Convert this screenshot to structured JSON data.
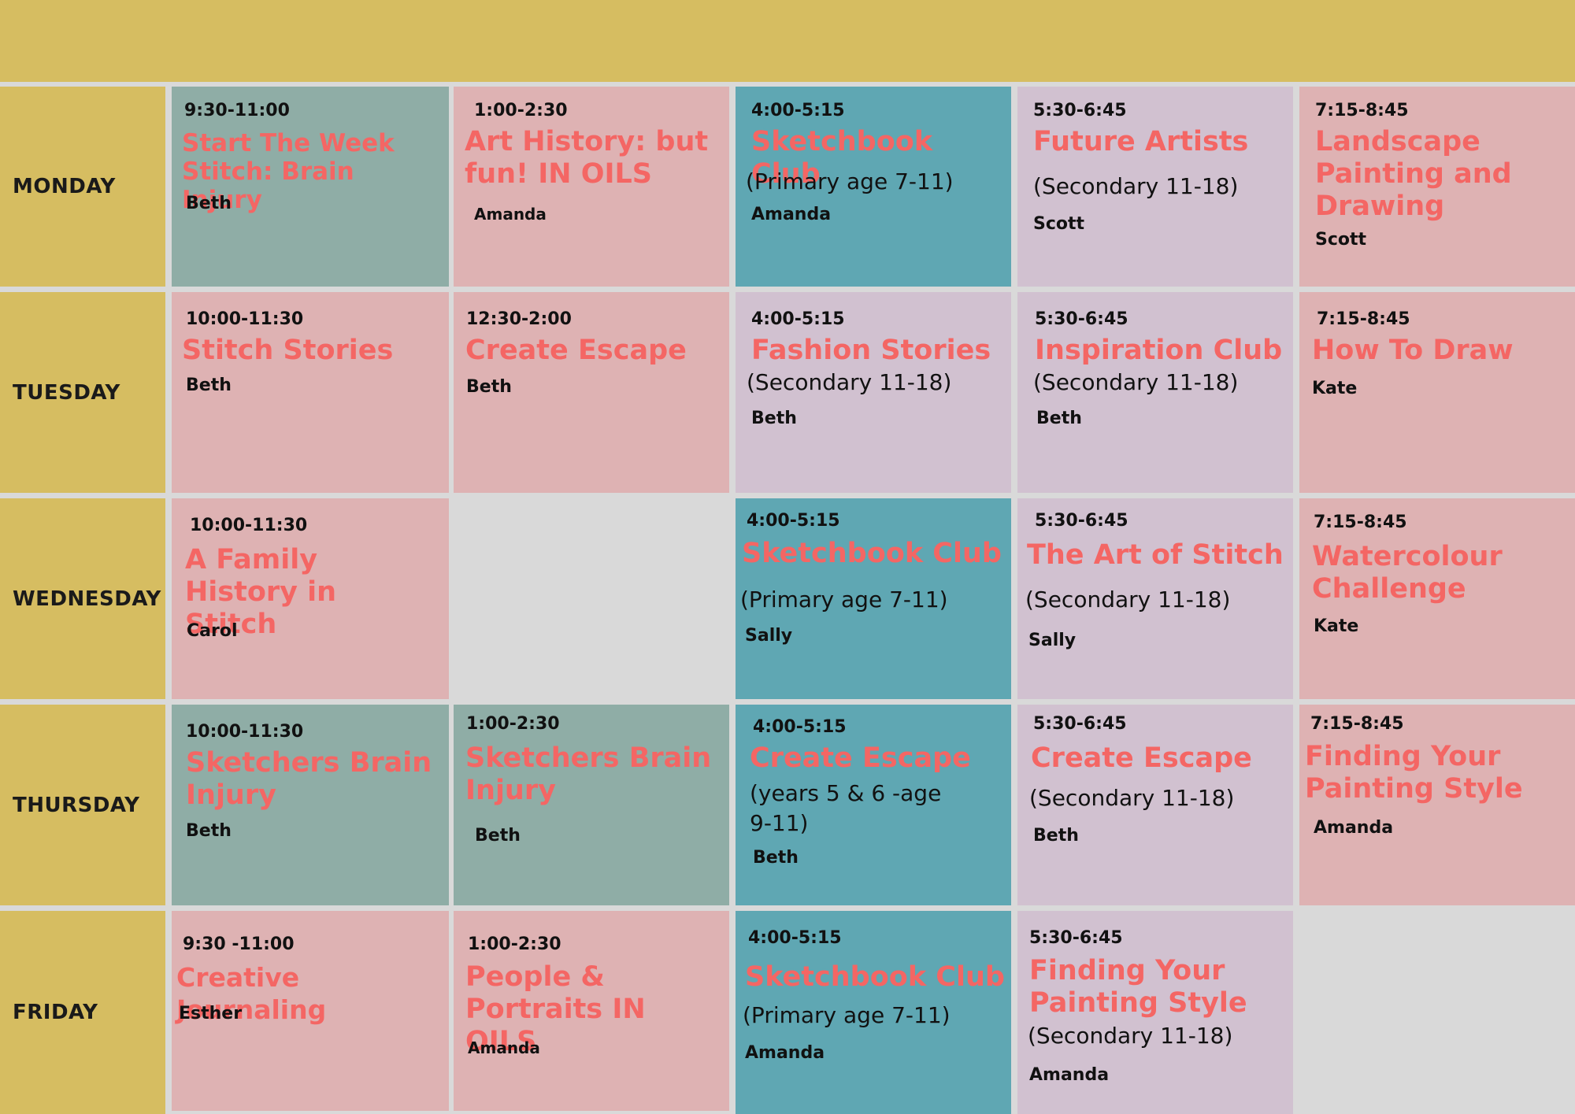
{
  "days": [
    "MONDAY",
    "TUESDAY",
    "WEDNESDAY",
    "THURSDAY",
    "FRIDAY"
  ],
  "sessions": {
    "mon1": {
      "time": "9:30-11:00",
      "title": "Start The Week Stitch: Brain Injury",
      "tutor": "Beth"
    },
    "mon2": {
      "time": "1:00-2:30",
      "title": "Art History: but fun! IN OILS",
      "tutor": "Amanda"
    },
    "mon3": {
      "time": "4:00-5:15",
      "title": "Sketchbook Club",
      "sub": "(Primary age 7-11)",
      "tutor": "Amanda"
    },
    "mon4": {
      "time": "5:30-6:45",
      "title": "Future Artists",
      "sub": "(Secondary 11-18)",
      "tutor": "Scott"
    },
    "mon5": {
      "time": "7:15-8:45",
      "title": "Landscape Painting and Drawing",
      "tutor": "Scott"
    },
    "tue1": {
      "time": "10:00-11:30",
      "title": "Stitch Stories",
      "tutor": "Beth"
    },
    "tue2": {
      "time": "12:30-2:00",
      "title": "Create Escape",
      "tutor": "Beth"
    },
    "tue3": {
      "time": "4:00-5:15",
      "title": "Fashion Stories",
      "sub": "(Secondary 11-18)",
      "tutor": "Beth"
    },
    "tue4": {
      "time": "5:30-6:45",
      "title": "Inspiration Club",
      "sub": "(Secondary 11-18)",
      "tutor": "Beth"
    },
    "tue5": {
      "time": "7:15-8:45",
      "title": "How To Draw",
      "tutor": "Kate"
    },
    "wed1": {
      "time": "10:00-11:30",
      "title": "A Family History in Stitch",
      "tutor": "Carol"
    },
    "wed3": {
      "time": "4:00-5:15",
      "title": "Sketchbook Club",
      "sub": "(Primary age 7-11)",
      "tutor": "Sally"
    },
    "wed4": {
      "time": "5:30-6:45",
      "title": "The Art of Stitch",
      "sub": "(Secondary 11-18)",
      "tutor": "Sally"
    },
    "wed5": {
      "time": "7:15-8:45",
      "title": "Watercolour Challenge",
      "tutor": "Kate"
    },
    "thu1": {
      "time": "10:00-11:30",
      "title": "Sketchers Brain Injury",
      "tutor": "Beth"
    },
    "thu2": {
      "time": "1:00-2:30",
      "title": "Sketchers Brain Injury",
      "tutor": "Beth"
    },
    "thu3": {
      "time": "4:00-5:15",
      "title": "Create Escape",
      "sub": "(years 5 & 6 -age 9-11)",
      "tutor": "Beth"
    },
    "thu4": {
      "time": "5:30-6:45",
      "title": "Create Escape",
      "sub": "(Secondary 11-18)",
      "tutor": "Beth"
    },
    "thu5": {
      "time": "7:15-8:45",
      "title": "Finding Your Painting Style",
      "tutor": "Amanda"
    },
    "fri1": {
      "time": "9:30 -11:00",
      "title": "Creative Journaling",
      "tutor": "Esther"
    },
    "fri2": {
      "time": "1:00-2:30",
      "title": "People & Portraits IN OILS",
      "tutor": "Amanda"
    },
    "fri3": {
      "time": "4:00-5:15",
      "title": "Sketchbook Club",
      "sub": "(Primary age 7-11)",
      "tutor": "Amanda"
    },
    "fri4": {
      "time": "5:30-6:45",
      "title": "Finding Your Painting Style",
      "sub": "(Secondary 11-18)",
      "tutor": "Amanda"
    }
  },
  "colors": {
    "header": "#d6bd61",
    "pink": "#deb2b3",
    "teal": "#5fa7b3",
    "sage": "#8fada6",
    "lilac": "#d1c1d0",
    "title_text": "#f46664"
  }
}
